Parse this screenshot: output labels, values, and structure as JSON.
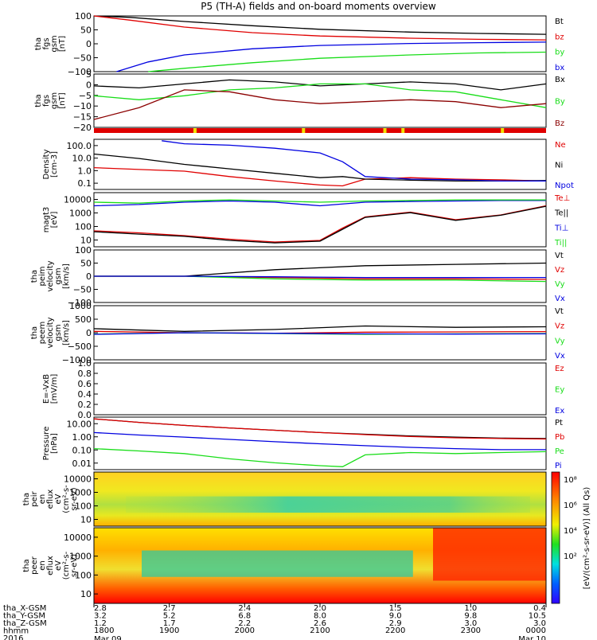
{
  "title": "P5 (TH-A) fields and on-board moments overview",
  "colors": {
    "black": "#000000",
    "red": "#e00000",
    "green": "#18dd18",
    "blue": "#0000e0",
    "darkred": "#8b0000"
  },
  "time_axis": {
    "ticks": [
      "1800",
      "1900",
      "2000",
      "2100",
      "2200",
      "2300",
      "0000"
    ],
    "date_left": "Mar 09",
    "date_right": "Mar 10",
    "rows": [
      {
        "label": "tha_X-GSM",
        "values": [
          "2.8",
          "2.7",
          "2.4",
          "2.0",
          "1.5",
          "1.0",
          "0.4"
        ]
      },
      {
        "label": "tha_Y-GSM",
        "values": [
          "3.2",
          "5.2",
          "6.8",
          "8.0",
          "9.0",
          "9.8",
          "10.5"
        ]
      },
      {
        "label": "tha_Z-GSM",
        "values": [
          "1.2",
          "1.7",
          "2.2",
          "2.6",
          "2.9",
          "3.0",
          "3.0"
        ]
      },
      {
        "label": "hhmm",
        "values": []
      },
      {
        "label": "2016",
        "values": []
      }
    ]
  },
  "colorbar": {
    "label": "[eV/(cm²-s-sr-eV)] (All Qs)",
    "ticks": [
      "10⁸",
      "10⁶",
      "10⁴",
      "10²"
    ]
  },
  "chart_data": [
    {
      "type": "line",
      "ylabel": [
        "tha",
        "fgs",
        "gsm",
        "[nT]"
      ],
      "ylim": [
        -100,
        100
      ],
      "yticks": [
        "100",
        "50",
        "0",
        "−50",
        "−100"
      ],
      "series": [
        {
          "name": "Bt",
          "color": "black",
          "x": [
            0,
            0.08,
            0.2,
            0.35,
            0.5,
            0.7,
            0.85,
            1.0
          ],
          "y": [
            100,
            95,
            80,
            65,
            52,
            42,
            37,
            34
          ]
        },
        {
          "name": "bz",
          "color": "red",
          "x": [
            0,
            0.08,
            0.2,
            0.35,
            0.5,
            0.7,
            0.85,
            1.0
          ],
          "y": [
            100,
            85,
            60,
            40,
            28,
            20,
            16,
            14
          ]
        },
        {
          "name": "by",
          "color": "green",
          "x": [
            0.12,
            0.2,
            0.35,
            0.5,
            0.7,
            0.85,
            1.0
          ],
          "y": [
            -100,
            -88,
            -68,
            -52,
            -40,
            -33,
            -30
          ]
        },
        {
          "name": "bx",
          "color": "blue",
          "x": [
            0.05,
            0.12,
            0.2,
            0.35,
            0.5,
            0.7,
            0.85,
            1.0
          ],
          "y": [
            -100,
            -65,
            -40,
            -18,
            -6,
            1,
            4,
            6
          ]
        }
      ]
    },
    {
      "type": "line",
      "ylabel": [
        "tha",
        "fgs",
        "gsm",
        "[nT]"
      ],
      "ylim": [
        -22,
        5
      ],
      "yticks": [
        "5",
        "0",
        "−5",
        "−10",
        "−15",
        "−20"
      ],
      "series": [
        {
          "name": "Bx",
          "color": "black",
          "x": [
            0,
            0.1,
            0.2,
            0.3,
            0.4,
            0.5,
            0.6,
            0.7,
            0.8,
            0.9,
            1.0
          ],
          "y": [
            -1,
            -2,
            0,
            2,
            1,
            -1,
            0,
            1,
            0,
            -3,
            0
          ]
        },
        {
          "name": "By",
          "color": "green",
          "x": [
            0,
            0.1,
            0.2,
            0.3,
            0.4,
            0.5,
            0.6,
            0.7,
            0.8,
            0.9,
            1.0
          ],
          "y": [
            -6,
            -8,
            -6,
            -3,
            -2,
            0,
            0,
            -3,
            -4,
            -8,
            -12
          ]
        },
        {
          "name": "Bz",
          "color": "darkred",
          "x": [
            0,
            0.1,
            0.2,
            0.3,
            0.4,
            0.5,
            0.6,
            0.7,
            0.8,
            0.9,
            1.0
          ],
          "y": [
            -18,
            -12,
            -3,
            -4,
            -8,
            -10,
            -9,
            -8,
            -9,
            -12,
            -10
          ]
        }
      ]
    },
    {
      "type": "line",
      "ylabel": [
        "Density",
        "[cm-3]"
      ],
      "log": true,
      "ylim": [
        0.04,
        100
      ],
      "yticks": [
        "100.0",
        "10.0",
        "1.0",
        "0.1"
      ],
      "series": [
        {
          "name": "Ne",
          "color": "red",
          "x": [
            0,
            0.1,
            0.2,
            0.3,
            0.4,
            0.5,
            0.55,
            0.6,
            0.7,
            0.8,
            0.9,
            1.0
          ],
          "y": [
            1.2,
            0.9,
            0.7,
            0.3,
            0.15,
            0.08,
            0.07,
            0.2,
            0.25,
            0.2,
            0.18,
            0.15
          ]
        },
        {
          "name": "Ni",
          "color": "black",
          "x": [
            0,
            0.1,
            0.2,
            0.3,
            0.4,
            0.5,
            0.55,
            0.6,
            0.7,
            0.8,
            0.9,
            1.0
          ],
          "y": [
            10,
            5,
            2,
            1,
            0.5,
            0.25,
            0.3,
            0.2,
            0.17,
            0.15,
            0.15,
            0.16
          ]
        },
        {
          "name": "Npot",
          "color": "blue",
          "x": [
            0.15,
            0.2,
            0.3,
            0.4,
            0.5,
            0.55,
            0.6,
            0.7,
            0.8,
            0.9,
            1.0
          ],
          "y": [
            80,
            50,
            40,
            25,
            12,
            3,
            0.3,
            0.2,
            0.18,
            0.15,
            0.15
          ]
        }
      ]
    },
    {
      "type": "line",
      "ylabel": [
        "magt3",
        "[eV]"
      ],
      "log": true,
      "ylim": [
        4,
        10000
      ],
      "yticks": [
        "10000",
        "1000",
        "100",
        "10"
      ],
      "series": [
        {
          "name": "Te⊥",
          "color": "red",
          "x": [
            0,
            0.1,
            0.2,
            0.3,
            0.4,
            0.5,
            0.55,
            0.6,
            0.7,
            0.8,
            0.9,
            1.0
          ],
          "y": [
            40,
            30,
            20,
            12,
            8,
            10,
            60,
            300,
            600,
            200,
            400,
            1500
          ]
        },
        {
          "name": "Te||",
          "color": "black",
          "x": [
            0,
            0.1,
            0.2,
            0.3,
            0.4,
            0.5,
            0.55,
            0.6,
            0.7,
            0.8,
            0.9,
            1.0
          ],
          "y": [
            35,
            25,
            18,
            10,
            7,
            9,
            50,
            280,
            550,
            180,
            380,
            1400
          ]
        },
        {
          "name": "Ti⊥",
          "color": "blue",
          "x": [
            0,
            0.1,
            0.2,
            0.3,
            0.4,
            0.5,
            0.6,
            0.7,
            0.8,
            0.9,
            1.0
          ],
          "y": [
            1500,
            1800,
            2500,
            3000,
            2500,
            1500,
            2500,
            2800,
            3000,
            3200,
            3200
          ]
        },
        {
          "name": "Ti||",
          "color": "green",
          "x": [
            0,
            0.1,
            0.2,
            0.3,
            0.4,
            0.5,
            0.6,
            0.7,
            0.8,
            0.9,
            1.0
          ],
          "y": [
            2500,
            2200,
            3000,
            3500,
            3000,
            2500,
            3000,
            3200,
            3500,
            3500,
            3500
          ]
        }
      ]
    },
    {
      "type": "line",
      "ylabel": [
        "tha",
        "peim",
        "velocity",
        "gsm",
        "[km/s]"
      ],
      "ylim": [
        -100,
        100
      ],
      "yticks": [
        "100",
        "50",
        "0",
        "−50",
        "−100"
      ],
      "series": [
        {
          "name": "Vt",
          "color": "black",
          "x": [
            0,
            0.2,
            0.4,
            0.6,
            0.8,
            1.0
          ],
          "y": [
            0,
            0,
            25,
            40,
            45,
            50
          ]
        },
        {
          "name": "Vz",
          "color": "red",
          "x": [
            0,
            0.2,
            0.4,
            0.6,
            0.8,
            1.0
          ],
          "y": [
            0,
            0,
            -5,
            -10,
            -10,
            -12
          ]
        },
        {
          "name": "Vy",
          "color": "green",
          "x": [
            0,
            0.2,
            0.4,
            0.6,
            0.8,
            1.0
          ],
          "y": [
            0,
            0,
            -10,
            -15,
            -15,
            -20
          ]
        },
        {
          "name": "Vx",
          "color": "blue",
          "x": [
            0,
            0.2,
            0.4,
            0.6,
            0.8,
            1.0
          ],
          "y": [
            0,
            0,
            -2,
            -5,
            -5,
            -5
          ]
        }
      ]
    },
    {
      "type": "line",
      "ylabel": [
        "tha",
        "peem",
        "velocity",
        "gsm",
        "[km/s]"
      ],
      "ylim": [
        -1000,
        1000
      ],
      "yticks": [
        "1000",
        "500",
        "0",
        "−500",
        "−1000"
      ],
      "series": [
        {
          "name": "Vt",
          "color": "black",
          "x": [
            0,
            0.2,
            0.4,
            0.6,
            0.8,
            1.0
          ],
          "y": [
            150,
            50,
            120,
            250,
            200,
            220
          ]
        },
        {
          "name": "Vz",
          "color": "red",
          "x": [
            0,
            0.2,
            0.4,
            0.6,
            0.8,
            1.0
          ],
          "y": [
            50,
            0,
            -20,
            20,
            30,
            40
          ]
        },
        {
          "name": "Vy",
          "color": "green",
          "x": [
            0,
            0.2,
            0.4,
            0.6,
            0.8,
            1.0
          ],
          "y": [
            -50,
            0,
            -30,
            -60,
            -40,
            -30
          ]
        },
        {
          "name": "Vx",
          "color": "blue",
          "x": [
            0,
            0.2,
            0.4,
            0.6,
            0.8,
            1.0
          ],
          "y": [
            -60,
            0,
            -20,
            -40,
            -50,
            -40
          ]
        }
      ]
    },
    {
      "type": "line",
      "ylabel": [
        "E=-VxB",
        "[mV/m]"
      ],
      "ylim": [
        0,
        1
      ],
      "yticks": [
        "1.0",
        "0.8",
        "0.6",
        "0.4",
        "0.2",
        "0.0"
      ],
      "series": [
        {
          "name": "Ez",
          "color": "red",
          "x": [],
          "y": []
        },
        {
          "name": "Ey",
          "color": "green",
          "x": [],
          "y": []
        },
        {
          "name": "Ex",
          "color": "blue",
          "x": [],
          "y": []
        }
      ]
    },
    {
      "type": "line",
      "ylabel": [
        "Pressure",
        "[nPa]"
      ],
      "log": true,
      "ylim": [
        0.003,
        30
      ],
      "yticks": [
        "10.00",
        "1.00",
        "0.10",
        "0.01"
      ],
      "series": [
        {
          "name": "Pt",
          "color": "black",
          "x": [
            0,
            0.1,
            0.2,
            0.3,
            0.4,
            0.5,
            0.6,
            0.7,
            0.8,
            0.9,
            1.0
          ],
          "y": [
            22,
            12,
            7,
            4.5,
            3,
            2,
            1.5,
            1.1,
            0.9,
            0.75,
            0.7
          ]
        },
        {
          "name": "Pb",
          "color": "red",
          "x": [
            0,
            0.1,
            0.2,
            0.3,
            0.4,
            0.5,
            0.6,
            0.7,
            0.8,
            0.9,
            1.0
          ],
          "y": [
            22,
            12,
            7,
            4.5,
            3,
            2,
            1.4,
            1.0,
            0.8,
            0.7,
            0.65
          ]
        },
        {
          "name": "Pe",
          "color": "green",
          "x": [
            0,
            0.1,
            0.2,
            0.3,
            0.4,
            0.5,
            0.55,
            0.6,
            0.7,
            0.8,
            0.9,
            1.0
          ],
          "y": [
            0.12,
            0.08,
            0.05,
            0.02,
            0.01,
            0.006,
            0.005,
            0.04,
            0.06,
            0.05,
            0.06,
            0.07
          ]
        },
        {
          "name": "Pi",
          "color": "blue",
          "x": [
            0,
            0.1,
            0.2,
            0.3,
            0.4,
            0.5,
            0.6,
            0.7,
            0.8,
            0.9,
            1.0
          ],
          "y": [
            2,
            1.3,
            0.9,
            0.6,
            0.4,
            0.28,
            0.2,
            0.15,
            0.12,
            0.1,
            0.1
          ]
        }
      ]
    },
    {
      "type": "heatmap",
      "ylabel": [
        "tha",
        "peir",
        "en",
        "eflux",
        "eV",
        "(cm²-s-",
        "sr-eV)"
      ],
      "log": true,
      "ylim": [
        6,
        20000
      ],
      "yticks": [
        "10000",
        "1000",
        "100",
        "10"
      ]
    },
    {
      "type": "heatmap",
      "ylabel": [
        "tha",
        "peer",
        "en",
        "eflux",
        "eV",
        "(cm²-s-",
        "sr-eV)"
      ],
      "log": true,
      "ylim": [
        6,
        20000
      ],
      "yticks": [
        "10000",
        "1000",
        "100",
        "10"
      ]
    }
  ]
}
